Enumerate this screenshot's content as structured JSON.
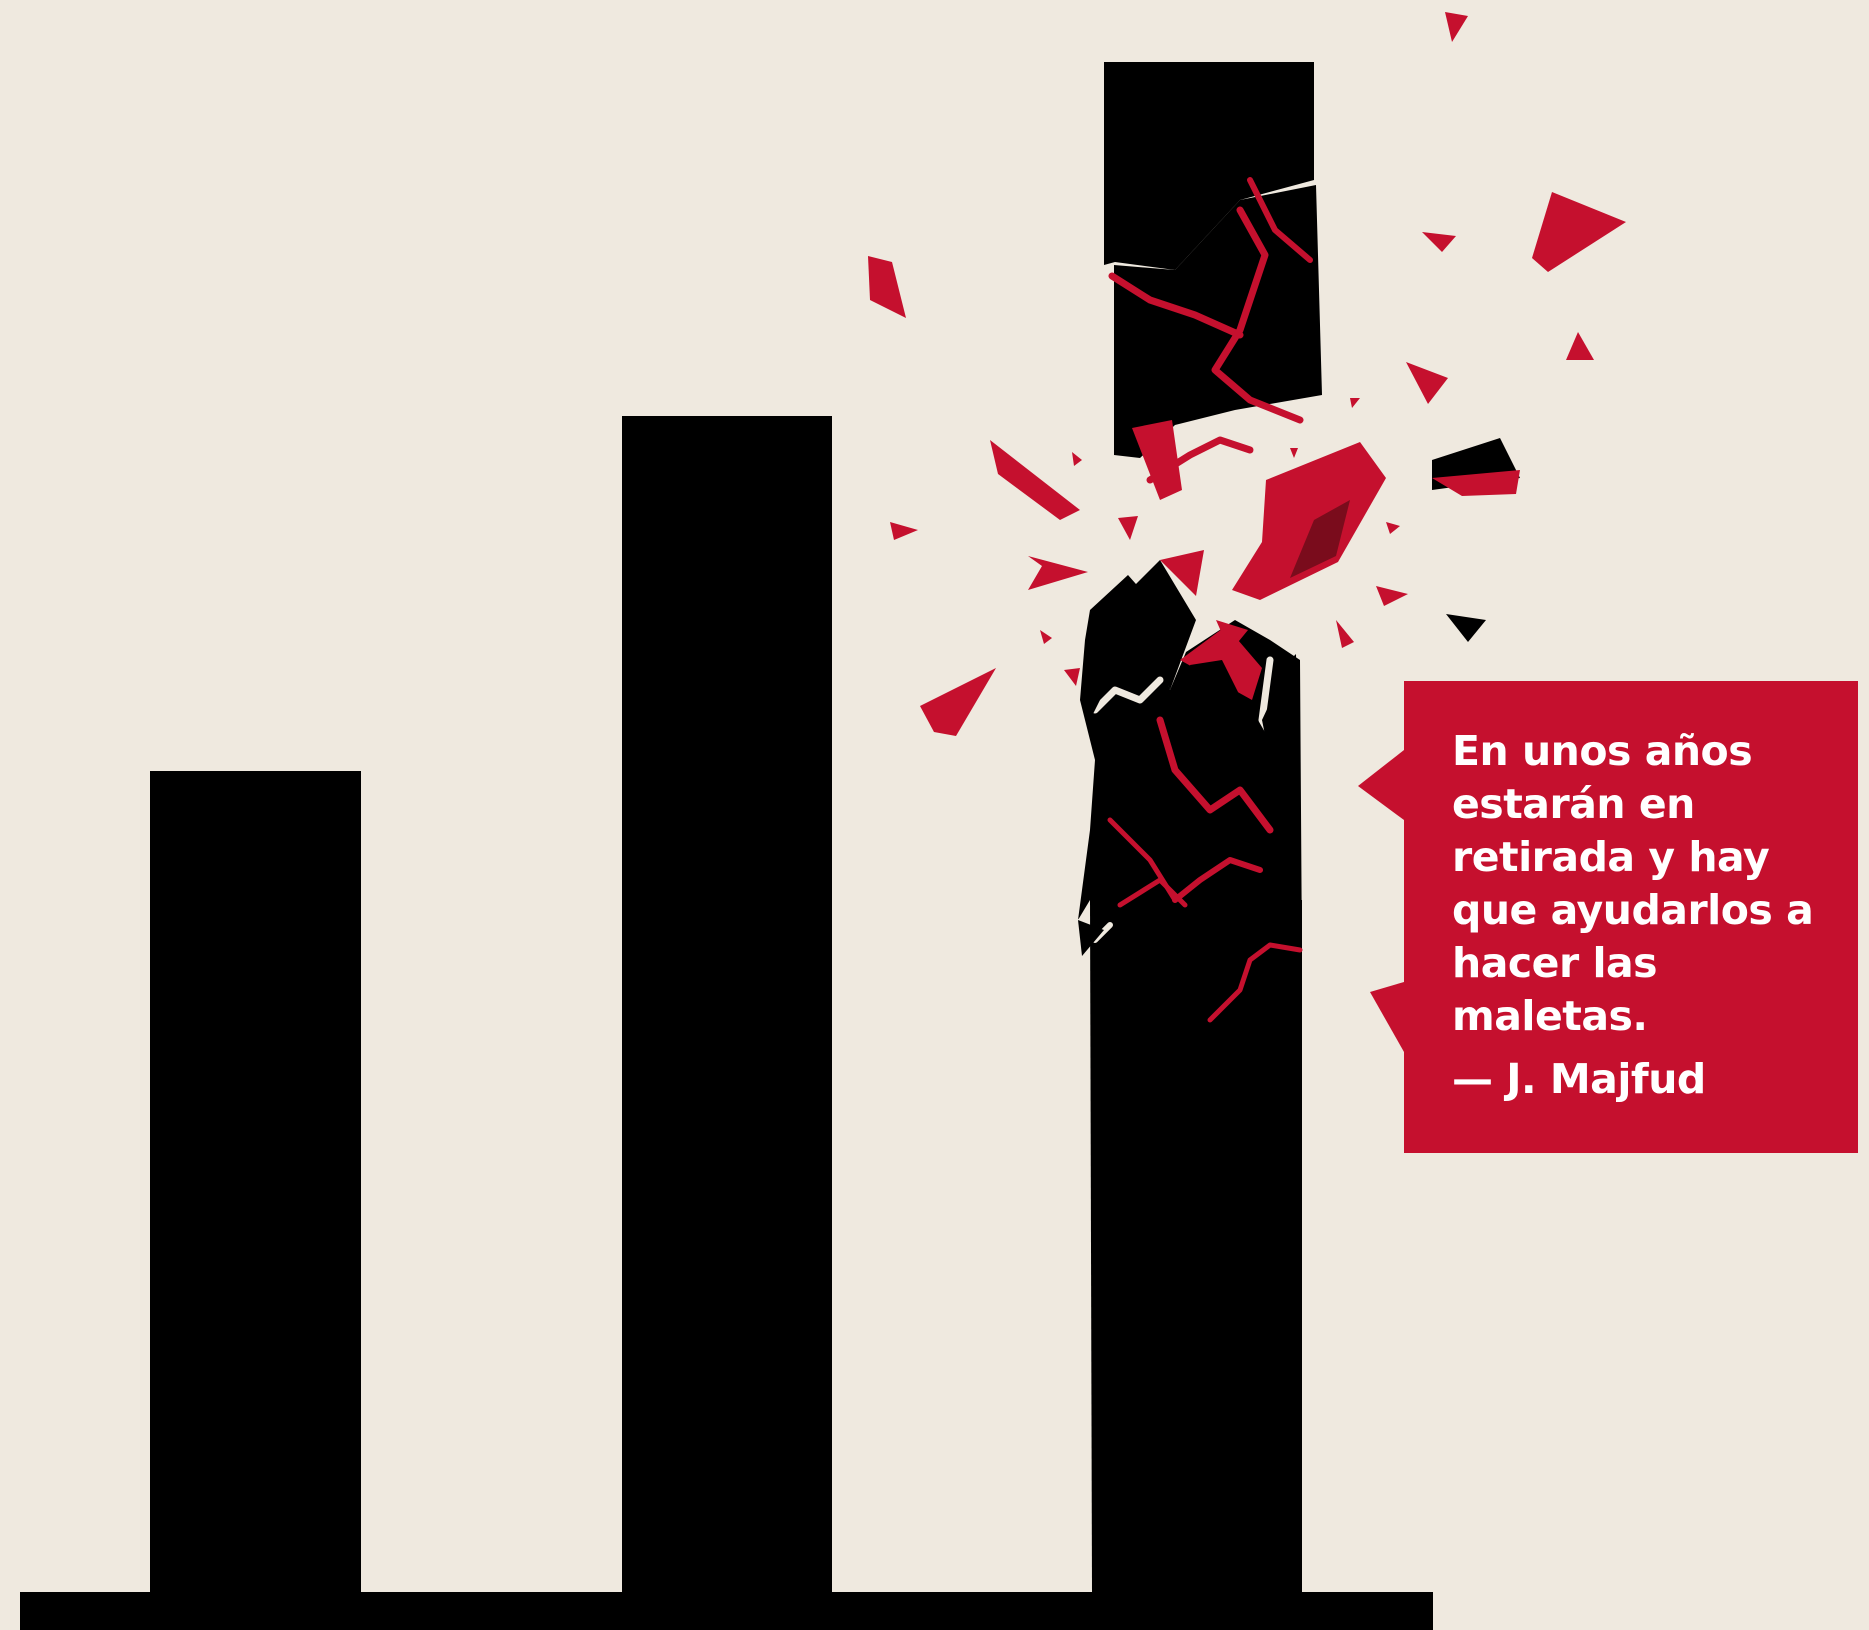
{
  "quote": {
    "text": "En unos años\nestarán en\nretirada y hay\nque ayudarlos a\nhacer las\nmaletas.",
    "author": "— J. Majfud"
  },
  "colors": {
    "background": "#efe9df",
    "bars": "#000000",
    "accent": "#c5102e",
    "accent_dark": "#7a0c1c"
  },
  "illustration": {
    "bar_count": 3,
    "shattered_bar": 3
  }
}
